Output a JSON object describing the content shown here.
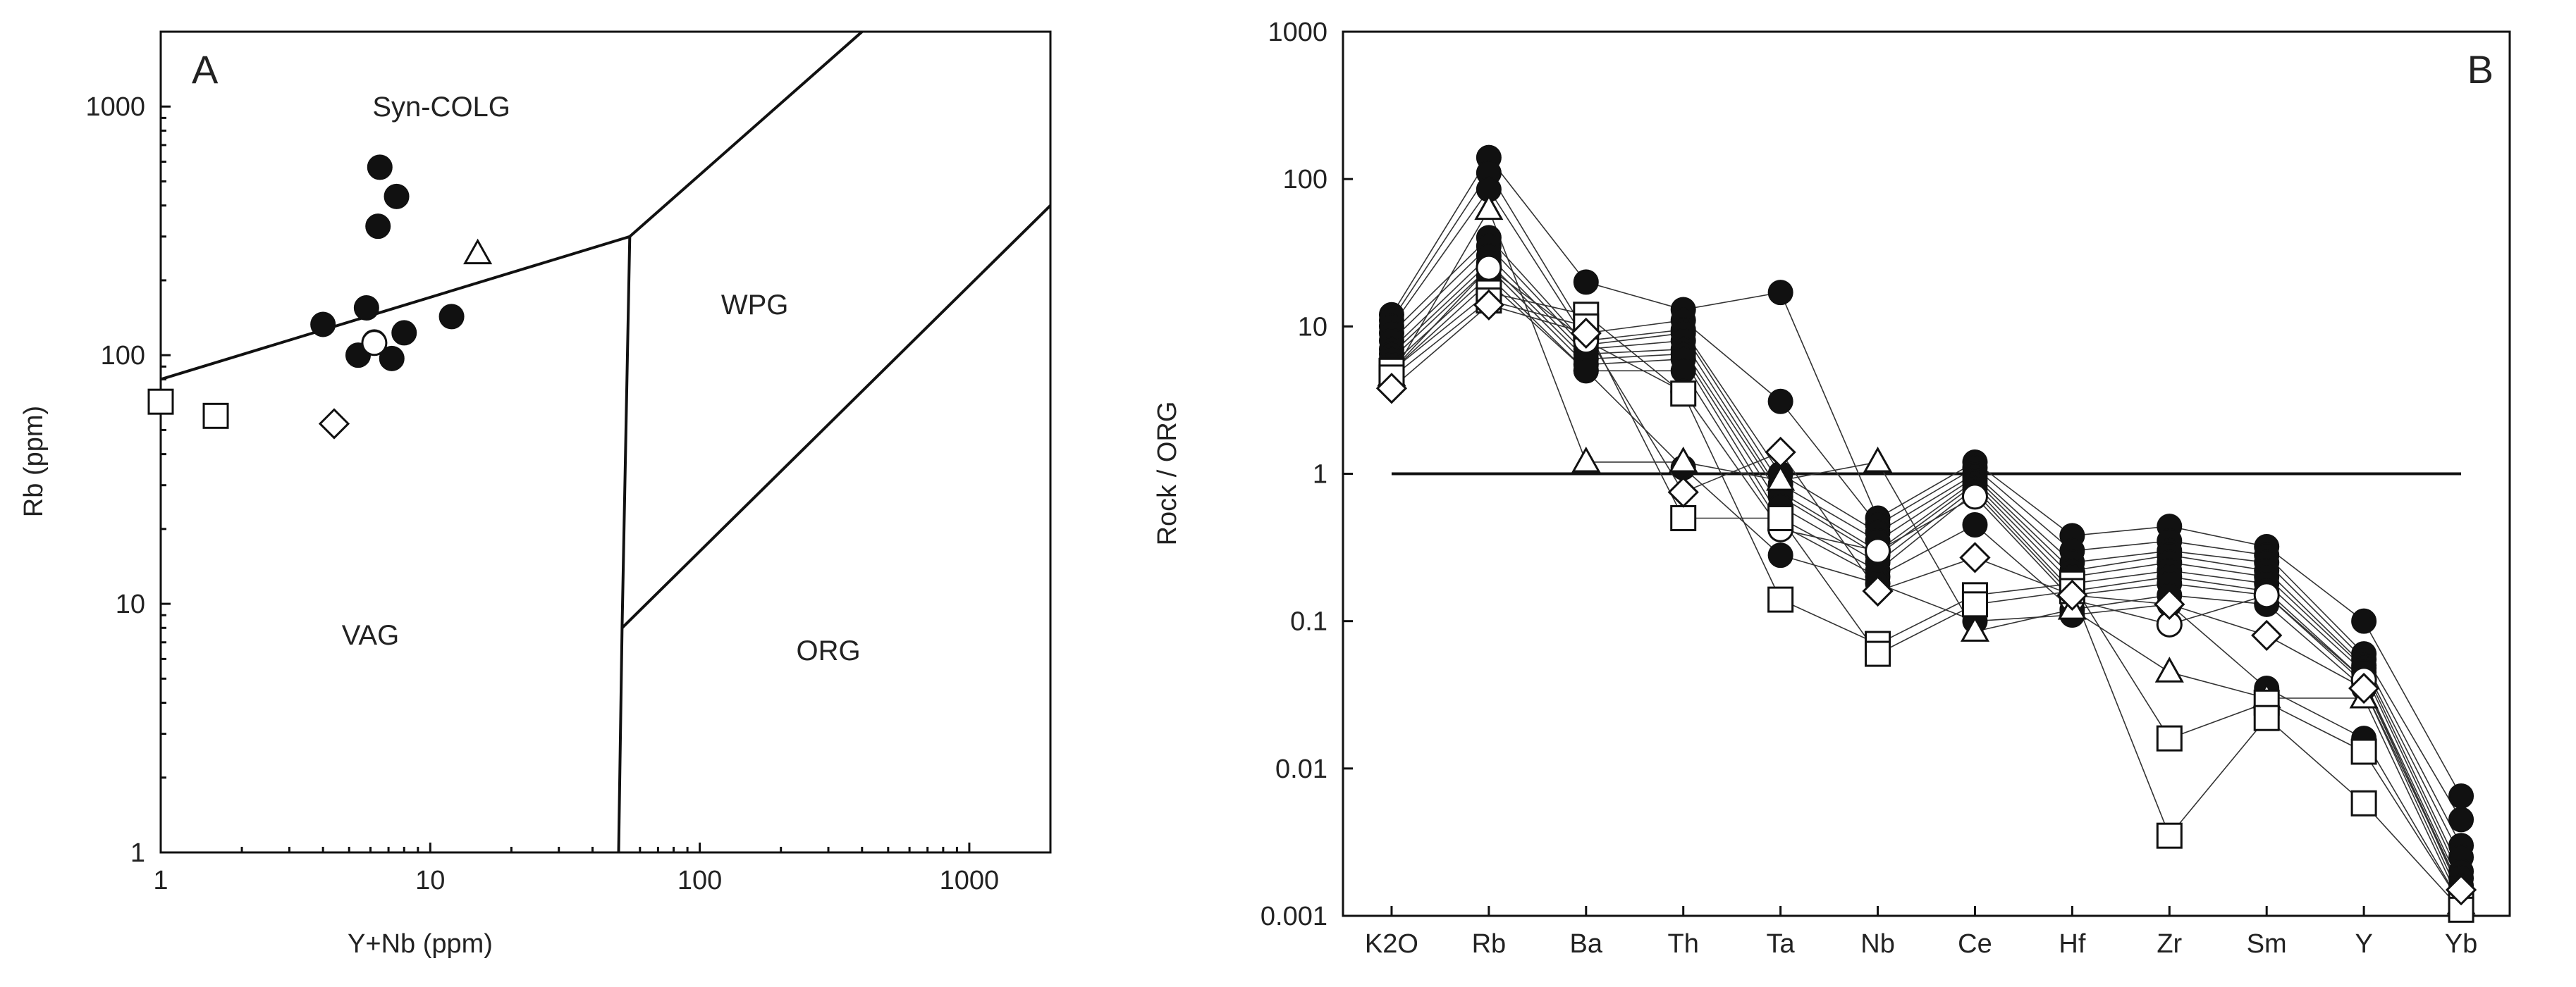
{
  "chart_data": [
    {
      "type": "scatter",
      "panel_label": "A",
      "xlabel": "Y+Nb (ppm)",
      "ylabel": "Rb (ppm)",
      "xscale": "log",
      "yscale": "log",
      "xlim": [
        1,
        2000
      ],
      "ylim": [
        1,
        2000
      ],
      "xticks": [
        1,
        10,
        100,
        1000
      ],
      "xtick_labels": [
        "1",
        "10",
        "100",
        "1000"
      ],
      "yticks": [
        1,
        10,
        100,
        1000
      ],
      "ytick_labels": [
        "1",
        "10",
        "100",
        "1000"
      ],
      "regions": [
        {
          "name": "Syn-COLG",
          "label": "Syn-COLG",
          "at": [
            11,
            1000
          ]
        },
        {
          "name": "WPG",
          "label": "WPG",
          "at": [
            160,
            160
          ]
        },
        {
          "name": "VAG",
          "label": "VAG",
          "at": [
            6,
            7.5
          ]
        },
        {
          "name": "ORG",
          "label": "ORG",
          "at": [
            300,
            6.5
          ]
        }
      ],
      "boundaries": [
        {
          "name": "syn-colg-vag",
          "points": [
            [
              1,
              80
            ],
            [
              55,
              300
            ]
          ]
        },
        {
          "name": "syn-colg-wpg",
          "points": [
            [
              55,
              300
            ],
            [
              400,
              2000
            ]
          ]
        },
        {
          "name": "wpg-vag",
          "points": [
            [
              55,
              300
            ],
            [
              51.5,
              8
            ],
            [
              50,
              1
            ]
          ]
        },
        {
          "name": "wpg-org",
          "points": [
            [
              51.5,
              8
            ],
            [
              2000,
              400
            ]
          ]
        }
      ],
      "series": [
        {
          "name": "filled-circle",
          "marker": "circle",
          "filled": true,
          "points": [
            [
              6.5,
              570
            ],
            [
              7.5,
              435
            ],
            [
              6.4,
              330
            ],
            [
              5.8,
              155
            ],
            [
              4,
              133
            ],
            [
              12,
              143
            ],
            [
              8,
              123
            ],
            [
              5.4,
              100
            ],
            [
              6.2,
              113
            ],
            [
              7.2,
              97
            ]
          ]
        },
        {
          "name": "open-circle",
          "marker": "circle",
          "filled": false,
          "points": [
            [
              6.2,
              112
            ]
          ]
        },
        {
          "name": "open-triangle",
          "marker": "triangle",
          "filled": false,
          "points": [
            [
              15,
              255
            ]
          ]
        },
        {
          "name": "open-square",
          "marker": "square",
          "filled": false,
          "points": [
            [
              1,
              65
            ],
            [
              1.6,
              57
            ]
          ]
        },
        {
          "name": "open-diamond",
          "marker": "diamond",
          "filled": false,
          "points": [
            [
              4.4,
              53
            ]
          ]
        }
      ]
    },
    {
      "type": "line",
      "panel_label": "B",
      "xlabel": "",
      "ylabel": "Rock / ORG",
      "yscale": "log",
      "ylim": [
        0.001,
        1000
      ],
      "yticks": [
        0.001,
        0.01,
        0.1,
        1,
        10,
        100,
        1000
      ],
      "ytick_labels": [
        "0.001",
        "0.01",
        "0.1",
        "1",
        "10",
        "100",
        "1000"
      ],
      "categories": [
        "K2O",
        "Rb",
        "Ba",
        "Th",
        "Ta",
        "Nb",
        "Ce",
        "Hf",
        "Zr",
        "Sm",
        "Y",
        "Yb"
      ],
      "reference_line": 1,
      "series": [
        {
          "name": "sample-1",
          "marker": "circle",
          "filled": true,
          "values": [
            12,
            140,
            20,
            13,
            17,
            0.5,
            1.2,
            0.38,
            0.44,
            0.32,
            0.1,
            0.0065
          ]
        },
        {
          "name": "sample-2",
          "marker": "circle",
          "filled": true,
          "values": [
            11,
            110,
            9,
            11,
            3.1,
            0.45,
            1.1,
            0.3,
            0.35,
            0.28,
            0.06,
            0.0045
          ]
        },
        {
          "name": "sample-3",
          "marker": "circle",
          "filled": true,
          "values": [
            10,
            85,
            8,
            9.5,
            1,
            0.4,
            1,
            0.25,
            0.3,
            0.25,
            0.055,
            0.003
          ]
        },
        {
          "name": "sample-4",
          "marker": "circle",
          "filled": true,
          "values": [
            9,
            40,
            7.5,
            9,
            0.85,
            0.35,
            0.95,
            0.22,
            0.28,
            0.22,
            0.05,
            0.0025
          ]
        },
        {
          "name": "sample-5",
          "marker": "circle",
          "filled": true,
          "values": [
            8,
            35,
            7,
            8,
            0.75,
            0.3,
            0.9,
            0.2,
            0.25,
            0.2,
            0.048,
            0.002
          ]
        },
        {
          "name": "sample-6",
          "marker": "circle",
          "filled": true,
          "values": [
            7,
            30,
            6.5,
            7,
            0.7,
            0.28,
            0.85,
            0.18,
            0.22,
            0.18,
            0.045,
            0.0018
          ]
        },
        {
          "name": "sample-7",
          "marker": "circle",
          "filled": true,
          "values": [
            6.5,
            27,
            6,
            6.5,
            0.6,
            0.25,
            0.8,
            0.16,
            0.2,
            0.16,
            0.04,
            0.0016
          ]
        },
        {
          "name": "sample-8",
          "marker": "circle",
          "filled": true,
          "values": [
            6,
            25,
            5.5,
            6,
            0.5,
            0.22,
            0.75,
            0.15,
            0.18,
            0.15,
            0.038,
            0.0015
          ]
        },
        {
          "name": "sample-9",
          "marker": "circle",
          "filled": true,
          "values": [
            5.5,
            22,
            5,
            5,
            0.45,
            0.2,
            0.45,
            0.12,
            0.15,
            0.13,
            0.035,
            0.0013
          ]
        },
        {
          "name": "sample-10",
          "marker": "circle",
          "filled": true,
          "values": [
            5,
            20,
            5,
            1.1,
            0.28,
            0.18,
            0.1,
            0.11,
            0.13,
            0.035,
            0.016,
            0.0012
          ]
        },
        {
          "name": "sample-11",
          "marker": "circle",
          "filled": false,
          "values": [
            5,
            25,
            8,
            3.6,
            0.42,
            0.3,
            0.7,
            0.14,
            0.095,
            0.15,
            0.04,
            0.0014
          ]
        },
        {
          "name": "sample-12",
          "marker": "triangle",
          "filled": false,
          "values": [
            4.6,
            62,
            1.2,
            1.2,
            0.9,
            1.2,
            0.085,
            0.12,
            0.045,
            0.03,
            0.03,
            0.0012
          ]
        },
        {
          "name": "sample-13",
          "marker": "square",
          "filled": false,
          "values": [
            5,
            17,
            12,
            3.5,
            0.14,
            0.07,
            0.15,
            0.18,
            0.016,
            0.028,
            0.013,
            0.0012
          ]
        },
        {
          "name": "sample-14",
          "marker": "square",
          "filled": false,
          "values": [
            4.5,
            15,
            10,
            0.5,
            0.5,
            0.06,
            0.13,
            0.16,
            0.0035,
            0.022,
            0.0058,
            0.0011
          ]
        },
        {
          "name": "sample-15",
          "marker": "diamond",
          "filled": false,
          "values": [
            3.8,
            14,
            9,
            0.75,
            1.4,
            0.16,
            0.27,
            0.15,
            0.13,
            0.08,
            0.035,
            0.0015
          ]
        }
      ]
    }
  ]
}
